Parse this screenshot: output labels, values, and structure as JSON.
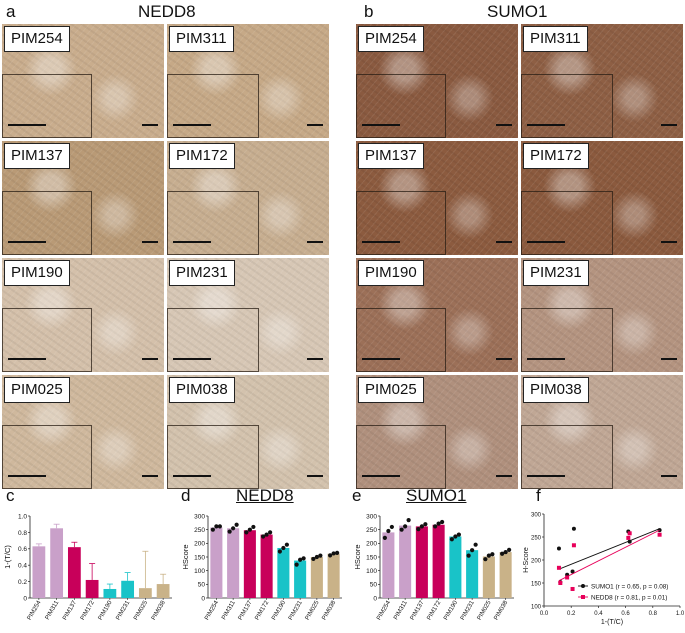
{
  "panels": {
    "a": {
      "letter": "a",
      "title": "NEDD8"
    },
    "b": {
      "letter": "b",
      "title": "SUMO1"
    },
    "c": {
      "letter": "c"
    },
    "d": {
      "letter": "d",
      "title": "NEDD8"
    },
    "e": {
      "letter": "e",
      "title": "SUMO1"
    },
    "f": {
      "letter": "f"
    }
  },
  "tiles_a": [
    {
      "label": "PIM254",
      "tone": "#c9ad8d"
    },
    {
      "label": "PIM311",
      "tone": "#c6a987"
    },
    {
      "label": "PIM137",
      "tone": "#b99a76"
    },
    {
      "label": "PIM172",
      "tone": "#c7ae90"
    },
    {
      "label": "PIM190",
      "tone": "#d4c0aa"
    },
    {
      "label": "PIM231",
      "tone": "#d7c7b5"
    },
    {
      "label": "PIM025",
      "tone": "#cfb89d"
    },
    {
      "label": "PIM038",
      "tone": "#d3c2ad"
    }
  ],
  "tiles_b": [
    {
      "label": "PIM254",
      "tone": "#8a5a40"
    },
    {
      "label": "PIM311",
      "tone": "#8e5f44"
    },
    {
      "label": "PIM137",
      "tone": "#8c5b3f"
    },
    {
      "label": "PIM172",
      "tone": "#8b5a3e"
    },
    {
      "label": "PIM190",
      "tone": "#9c7058"
    },
    {
      "label": "PIM231",
      "tone": "#b49480"
    },
    {
      "label": "PIM025",
      "tone": "#b0907d"
    },
    {
      "label": "PIM038",
      "tone": "#c0a795"
    }
  ],
  "colors": {
    "pink": "#c9a0c9",
    "magenta": "#c8005a",
    "cyan": "#19c3c8",
    "tan": "#c9b288",
    "sumo_line": "#111111",
    "nedd_line": "#e8005a"
  },
  "chart_data": [
    {
      "id": "c",
      "type": "bar",
      "ylabel": "1-(T/C)",
      "ylim": [
        0,
        1.0
      ],
      "yticks": [
        "0",
        "0.2",
        "0.4",
        "0.6",
        "0.8",
        "1.0"
      ],
      "categories": [
        "PIM254",
        "PIM311",
        "PIM137",
        "PIM172",
        "PIM190",
        "PIM231",
        "PIM025",
        "PIM038"
      ],
      "values": [
        0.63,
        0.85,
        0.62,
        0.22,
        0.11,
        0.21,
        0.12,
        0.17
      ],
      "errors": [
        0.03,
        0.05,
        0.06,
        0.2,
        0.06,
        0.1,
        0.45,
        0.12
      ],
      "bar_colors": [
        "pink",
        "pink",
        "magenta",
        "magenta",
        "cyan",
        "cyan",
        "tan",
        "tan"
      ]
    },
    {
      "id": "d",
      "type": "bar",
      "title": "NEDD8",
      "ylabel": "HScore",
      "ylim": [
        0,
        300
      ],
      "yticks": [
        "0",
        "50",
        "100",
        "150",
        "200",
        "250",
        "300"
      ],
      "categories": [
        "PIM254",
        "PIM311",
        "PIM137",
        "PIM172",
        "PIM190",
        "PIM231",
        "PIM025",
        "PIM038"
      ],
      "values": [
        258,
        255,
        248,
        232,
        183,
        137,
        150,
        162
      ],
      "points": [
        [
          250,
          262,
          262
        ],
        [
          243,
          255,
          268
        ],
        [
          240,
          250,
          260
        ],
        [
          225,
          232,
          240
        ],
        [
          170,
          183,
          195
        ],
        [
          122,
          140,
          145
        ],
        [
          143,
          150,
          155
        ],
        [
          156,
          163,
          165
        ]
      ],
      "bar_colors": [
        "pink",
        "pink",
        "magenta",
        "magenta",
        "cyan",
        "cyan",
        "tan",
        "tan"
      ]
    },
    {
      "id": "e",
      "type": "bar",
      "title": "SUMO1",
      "ylabel": "HScore",
      "ylim": [
        0,
        300
      ],
      "yticks": [
        "0",
        "50",
        "100",
        "150",
        "200",
        "250",
        "300"
      ],
      "categories": [
        "PIM254",
        "PIM311",
        "PIM137",
        "PIM172",
        "PIM190",
        "PIM231",
        "PIM025",
        "PIM038"
      ],
      "values": [
        240,
        265,
        262,
        268,
        225,
        175,
        152,
        168
      ],
      "points": [
        [
          220,
          245,
          260
        ],
        [
          250,
          262,
          285
        ],
        [
          252,
          262,
          270
        ],
        [
          262,
          272,
          278
        ],
        [
          215,
          225,
          232
        ],
        [
          155,
          175,
          195
        ],
        [
          142,
          155,
          160
        ],
        [
          162,
          168,
          176
        ]
      ],
      "bar_colors": [
        "pink",
        "pink",
        "magenta",
        "magenta",
        "cyan",
        "cyan",
        "tan",
        "tan"
      ]
    },
    {
      "id": "f",
      "type": "scatter",
      "xlabel": "1-(T/C)",
      "ylabel": "H-Score",
      "xlim": [
        0,
        1.0
      ],
      "ylim": [
        100,
        300
      ],
      "xticks": [
        "0.0",
        "0.2",
        "0.4",
        "0.6",
        "0.8",
        "1.0"
      ],
      "yticks": [
        "100",
        "150",
        "200",
        "250",
        "300"
      ],
      "series": [
        {
          "name": "SUMO1 (r = 0.65, p = 0.08)",
          "color_key": "sumo_line",
          "marker": "circle",
          "x": [
            0.63,
            0.85,
            0.62,
            0.22,
            0.11,
            0.21,
            0.12,
            0.17
          ],
          "y": [
            240,
            265,
            262,
            268,
            225,
            175,
            152,
            168
          ],
          "fit": [
            [
              0.11,
              180
            ],
            [
              0.85,
              268
            ]
          ]
        },
        {
          "name": "NEDD8 (r = 0.81, p = 0.01)",
          "color_key": "nedd_line",
          "marker": "square",
          "x": [
            0.63,
            0.85,
            0.62,
            0.22,
            0.11,
            0.21,
            0.12,
            0.17
          ],
          "y": [
            258,
            255,
            248,
            232,
            183,
            137,
            150,
            162
          ],
          "fit": [
            [
              0.11,
              155
            ],
            [
              0.85,
              265
            ]
          ]
        }
      ],
      "legend": "bottom-right"
    }
  ]
}
